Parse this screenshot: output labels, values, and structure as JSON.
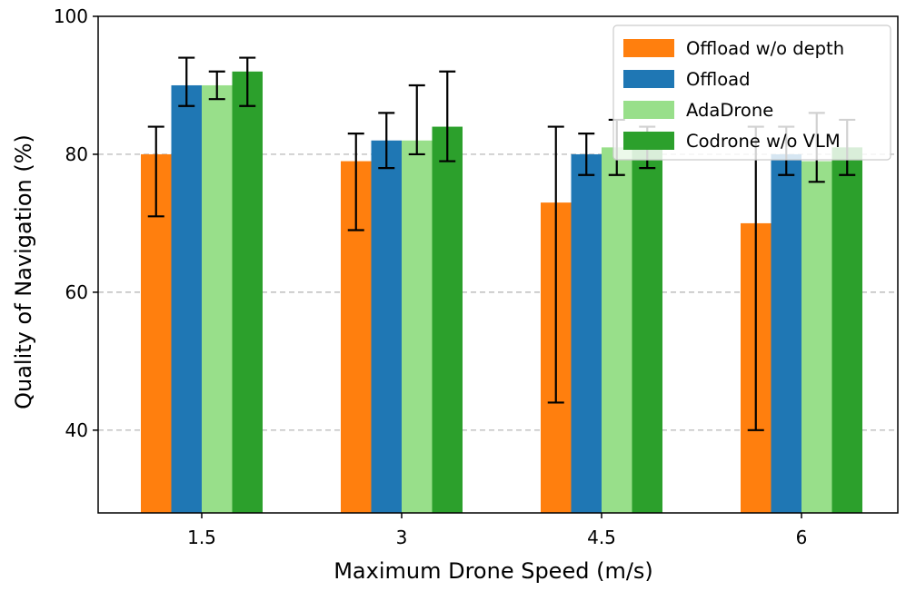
{
  "chart_data": {
    "type": "bar",
    "xlabel": "Maximum Drone Speed (m/s)",
    "ylabel": "Quality of Navigation (%)",
    "ylim": [
      28,
      100
    ],
    "yticks": [
      40,
      60,
      80,
      100
    ],
    "grid": "y-dashed",
    "legend_position": "top-right",
    "categories": [
      "1.5",
      "3",
      "4.5",
      "6"
    ],
    "series": [
      {
        "name": "Offload w/o depth",
        "color": "#ff7f0e",
        "values": [
          80,
          79,
          73,
          70
        ],
        "err_low": [
          71,
          69,
          44,
          40
        ],
        "err_high": [
          84,
          83,
          84,
          84
        ]
      },
      {
        "name": "Offload",
        "color": "#1f77b4",
        "values": [
          90,
          82,
          80,
          80
        ],
        "err_low": [
          87,
          78,
          77,
          77
        ],
        "err_high": [
          94,
          86,
          83,
          84
        ]
      },
      {
        "name": "AdaDrone",
        "color": "#98df8a",
        "values": [
          90,
          82,
          81,
          79
        ],
        "err_low": [
          88,
          80,
          77,
          76
        ],
        "err_high": [
          92,
          90,
          85,
          86
        ]
      },
      {
        "name": "Codrone w/o VLM",
        "color": "#2ca02c",
        "values": [
          92,
          84,
          81,
          81
        ],
        "err_low": [
          87,
          79,
          78,
          77
        ],
        "err_high": [
          94,
          92,
          84,
          85
        ]
      }
    ]
  }
}
